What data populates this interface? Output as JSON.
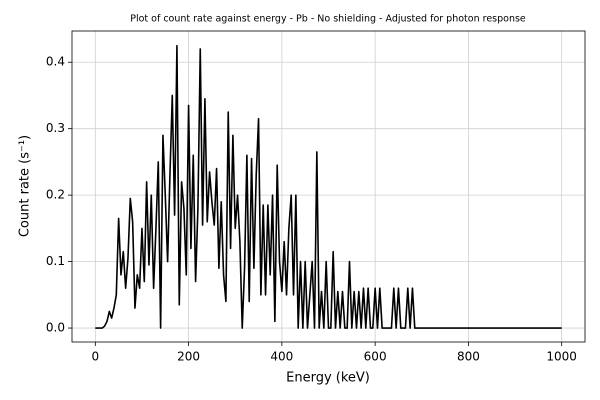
{
  "chart_data": {
    "type": "line",
    "title": "Plot of count rate against energy - Pb - No shielding - Adjusted for photon response",
    "x_label": "Energy (keV)",
    "y_label": "Count rate (s⁻¹)",
    "x": [
      0,
      5,
      10,
      15,
      20,
      25,
      30,
      35,
      40,
      45,
      50,
      55,
      60,
      65,
      70,
      75,
      80,
      85,
      90,
      95,
      100,
      105,
      110,
      115,
      120,
      125,
      130,
      135,
      140,
      145,
      150,
      155,
      160,
      165,
      170,
      175,
      180,
      185,
      190,
      195,
      200,
      205,
      210,
      215,
      220,
      225,
      230,
      235,
      240,
      245,
      250,
      255,
      260,
      265,
      270,
      275,
      280,
      285,
      290,
      295,
      300,
      305,
      310,
      315,
      320,
      325,
      330,
      335,
      340,
      345,
      350,
      355,
      360,
      365,
      370,
      375,
      380,
      385,
      390,
      395,
      400,
      405,
      410,
      415,
      420,
      425,
      430,
      435,
      440,
      445,
      450,
      455,
      460,
      465,
      470,
      475,
      480,
      485,
      490,
      495,
      500,
      505,
      510,
      515,
      520,
      525,
      530,
      535,
      540,
      545,
      550,
      555,
      560,
      565,
      570,
      575,
      580,
      585,
      590,
      595,
      600,
      605,
      610,
      615,
      620,
      625,
      630,
      635,
      640,
      645,
      650,
      655,
      660,
      665,
      670,
      675,
      680,
      685,
      690,
      1000
    ],
    "series": [
      {
        "name": "Count rate",
        "color": "#000000",
        "values": [
          0,
          0,
          0,
          0,
          0.003,
          0.01,
          0.025,
          0.015,
          0.03,
          0.05,
          0.165,
          0.08,
          0.115,
          0.06,
          0.105,
          0.195,
          0.16,
          0.03,
          0.08,
          0.06,
          0.15,
          0.07,
          0.22,
          0.095,
          0.2,
          0.06,
          0.15,
          0.25,
          0,
          0.29,
          0.2,
          0.1,
          0.23,
          0.35,
          0.17,
          0.425,
          0.035,
          0.22,
          0.18,
          0.08,
          0.335,
          0.12,
          0.26,
          0.07,
          0.18,
          0.42,
          0.155,
          0.345,
          0.16,
          0.235,
          0.19,
          0.155,
          0.24,
          0.09,
          0.19,
          0.08,
          0.04,
          0.325,
          0.12,
          0.29,
          0.15,
          0.2,
          0.13,
          0,
          0.09,
          0.26,
          0.04,
          0.255,
          0.09,
          0.23,
          0.315,
          0.05,
          0.185,
          0.05,
          0.185,
          0.08,
          0.2,
          0.01,
          0.245,
          0.1,
          0.055,
          0.13,
          0.05,
          0.15,
          0.2,
          0.05,
          0.2,
          0,
          0.1,
          0,
          0.1,
          0,
          0.05,
          0.1,
          0,
          0.265,
          0,
          0.055,
          0,
          0.1,
          0,
          0,
          0.115,
          0,
          0.055,
          0,
          0.055,
          0,
          0,
          0.1,
          0,
          0.055,
          0,
          0.055,
          0,
          0.06,
          0,
          0.06,
          0,
          0,
          0.06,
          0,
          0.06,
          0,
          0,
          0,
          0,
          0,
          0.06,
          0,
          0.06,
          0,
          0,
          0,
          0.06,
          0,
          0.06,
          0,
          0,
          0
        ]
      }
    ],
    "xlim": [
      -50,
      1050
    ],
    "xticks": [
      0,
      200,
      400,
      600,
      800,
      1000
    ],
    "ylim": [
      -0.021,
      0.447
    ],
    "yticks": [
      {
        "value": 0,
        "label": "0.0"
      },
      0.1,
      0.2,
      0.3,
      0.4
    ],
    "grid": true
  }
}
